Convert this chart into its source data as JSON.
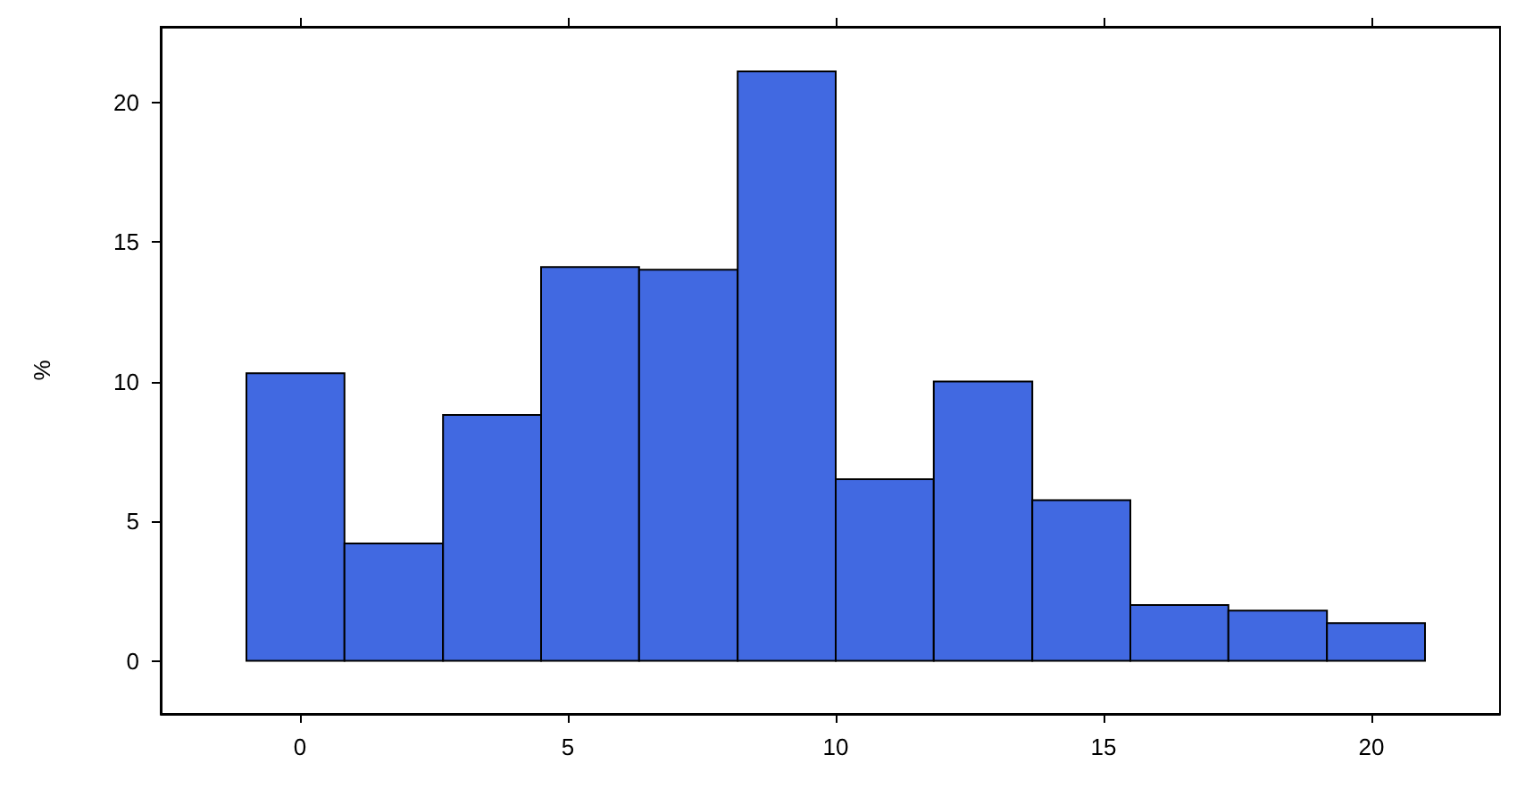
{
  "chart_data": {
    "type": "histogram",
    "ylabel": "%",
    "color": "#4169e1",
    "bins": [
      -1,
      0.83,
      2.67,
      4.5,
      6.33,
      8.17,
      10,
      11.83,
      13.67,
      15.5,
      17.33,
      19.17,
      21
    ],
    "values": [
      10.3,
      4.2,
      8.8,
      14.1,
      14.0,
      21.1,
      6.5,
      10.0,
      5.75,
      2.0,
      1.8,
      1.35
    ],
    "xlim": [
      -2.6,
      22.4
    ],
    "xticks": [
      0,
      5,
      10,
      15,
      20
    ],
    "ylim": [
      -1.9,
      22.7
    ],
    "yticks": [
      0,
      5,
      10,
      15,
      20
    ]
  }
}
